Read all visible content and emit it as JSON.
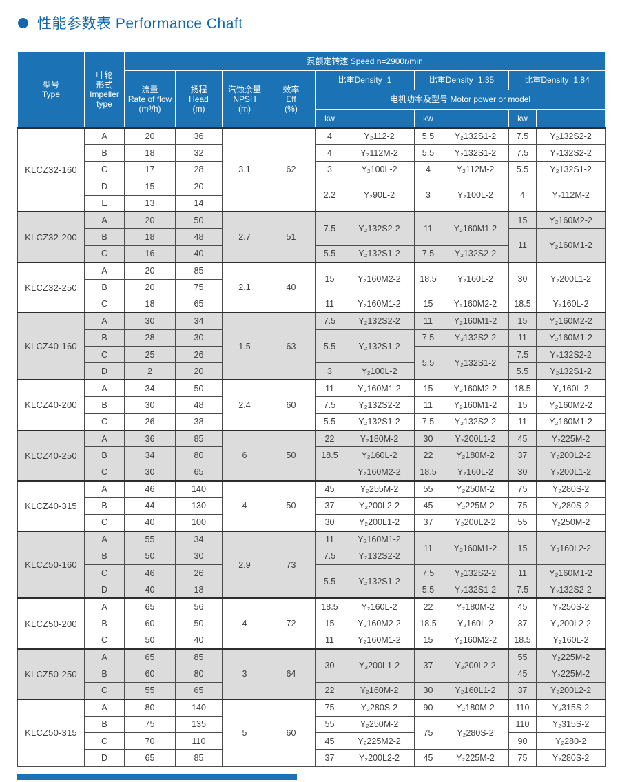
{
  "page": {
    "title": "性能参数表 Performance Chaft"
  },
  "colors": {
    "accent_blue": "#1268ae",
    "header_blue": "#1b73b5",
    "shaded_row_gray": "#dcdcdc",
    "border_dark": "#2d2d2d"
  },
  "header": {
    "speed": "泵额定转速 Speed n=2900r/min",
    "type": "型号\nType",
    "impeller": "叶轮\n形式\nImpeller\ntype",
    "flow": "流量\nRate of flow\n(m³/h)",
    "head": "扬程\nHead\n(m)",
    "npsh": "汽蚀余量\nNPSH\n(m)",
    "eff": "效率\nEff\n(%)",
    "density1": "比重Density=1",
    "density135": "比重Density=1.35",
    "density184": "比重Density=1.84",
    "motor": "电机功率及型号 Motor power or model",
    "kw": "kw"
  },
  "table": {
    "groups": [
      {
        "model": "KLCZ32-160",
        "shaded": false,
        "npsh": "3.1",
        "eff": "62",
        "rows": [
          {
            "impeller": "A",
            "flow": "20",
            "head": "36"
          },
          {
            "impeller": "B",
            "flow": "18",
            "head": "32"
          },
          {
            "impeller": "C",
            "flow": "17",
            "head": "28"
          },
          {
            "impeller": "D",
            "flow": "15",
            "head": "20"
          },
          {
            "impeller": "E",
            "flow": "13",
            "head": "14"
          }
        ],
        "motor": {
          "d1": [
            {
              "span": 1,
              "kw": "4",
              "model": "Y₂112-2"
            },
            {
              "span": 1,
              "kw": "4",
              "model": "Y₂112M-2"
            },
            {
              "span": 1,
              "kw": "3",
              "model": "Y₂100L-2"
            },
            {
              "span": 2,
              "kw": "2.2",
              "model": "Y₂90L-2"
            }
          ],
          "d135": [
            {
              "span": 1,
              "kw": "5.5",
              "model": "Y₂132S1-2"
            },
            {
              "span": 1,
              "kw": "5.5",
              "model": "Y₂132S1-2"
            },
            {
              "span": 1,
              "kw": "4",
              "model": "Y₂112M-2"
            },
            {
              "span": 2,
              "kw": "3",
              "model": "Y₂100L-2"
            }
          ],
          "d184": [
            {
              "span": 1,
              "kw": "7.5",
              "model": "Y₂132S2-2"
            },
            {
              "span": 1,
              "kw": "7.5",
              "model": "Y₂132S2-2"
            },
            {
              "span": 1,
              "kw": "5.5",
              "model": "Y₂132S1-2"
            },
            {
              "span": 2,
              "kw": "4",
              "model": "Y₂112M-2"
            }
          ]
        }
      },
      {
        "model": "KLCZ32-200",
        "shaded": true,
        "npsh": "2.7",
        "eff": "51",
        "rows": [
          {
            "impeller": "A",
            "flow": "20",
            "head": "50"
          },
          {
            "impeller": "B",
            "flow": "18",
            "head": "48"
          },
          {
            "impeller": "C",
            "flow": "16",
            "head": "40"
          }
        ],
        "motor": {
          "d1": [
            {
              "span": 2,
              "kw": "7.5",
              "model": "Y₂132S2-2"
            },
            {
              "span": 1,
              "kw": "5.5",
              "model": "Y₂132S1-2"
            }
          ],
          "d135": [
            {
              "span": 2,
              "kw": "11",
              "model": "Y₂160M1-2"
            },
            {
              "span": 1,
              "kw": "7.5",
              "model": "Y₂132S2-2"
            }
          ],
          "d184": [
            {
              "span": 1,
              "kw": "15",
              "model": "Y₂160M2-2"
            },
            {
              "span": 2,
              "kw": "11",
              "model": "Y₂160M1-2"
            }
          ]
        }
      },
      {
        "model": "KLCZ32-250",
        "shaded": false,
        "npsh": "2.1",
        "eff": "40",
        "rows": [
          {
            "impeller": "A",
            "flow": "20",
            "head": "85"
          },
          {
            "impeller": "B",
            "flow": "20",
            "head": "75"
          },
          {
            "impeller": "C",
            "flow": "18",
            "head": "65"
          }
        ],
        "motor": {
          "d1": [
            {
              "span": 2,
              "kw": "15",
              "model": "Y₂160M2-2"
            },
            {
              "span": 1,
              "kw": "11",
              "model": "Y₂160M1-2"
            }
          ],
          "d135": [
            {
              "span": 2,
              "kw": "18.5",
              "model": "Y₂160L-2"
            },
            {
              "span": 1,
              "kw": "15",
              "model": "Y₂160M2-2"
            }
          ],
          "d184": [
            {
              "span": 2,
              "kw": "30",
              "model": "Y₂200L1-2"
            },
            {
              "span": 1,
              "kw": "18.5",
              "model": "Y₂160L-2"
            }
          ]
        }
      },
      {
        "model": "KLCZ40-160",
        "shaded": true,
        "npsh": "1.5",
        "eff": "63",
        "rows": [
          {
            "impeller": "A",
            "flow": "30",
            "head": "34"
          },
          {
            "impeller": "B",
            "flow": "28",
            "head": "30"
          },
          {
            "impeller": "C",
            "flow": "25",
            "head": "26"
          },
          {
            "impeller": "D",
            "flow": "2",
            "head": "20"
          }
        ],
        "motor": {
          "d1": [
            {
              "span": 1,
              "kw": "7.5",
              "model": "Y₂132S2-2"
            },
            {
              "span": 2,
              "kw": "5.5",
              "model": "Y₂132S1-2"
            },
            {
              "span": 1,
              "kw": "3",
              "model": "Y₂100L-2"
            }
          ],
          "d135": [
            {
              "span": 1,
              "kw": "11",
              "model": "Y₂160M1-2"
            },
            {
              "span": 1,
              "kw": "7.5",
              "model": "Y₂132S2-2"
            },
            {
              "span": 2,
              "kw": "5.5",
              "model": "Y₂132S1-2"
            }
          ],
          "d184": [
            {
              "span": 1,
              "kw": "15",
              "model": "Y₂160M2-2"
            },
            {
              "span": 1,
              "kw": "11",
              "model": "Y₂160M1-2"
            },
            {
              "span": 1,
              "kw": "7.5",
              "model": "Y₂132S2-2"
            },
            {
              "span": 1,
              "kw": "5.5",
              "model": "Y₂132S1-2"
            }
          ]
        }
      },
      {
        "model": "KLCZ40-200",
        "shaded": false,
        "npsh": "2.4",
        "eff": "60",
        "rows": [
          {
            "impeller": "A",
            "flow": "34",
            "head": "50"
          },
          {
            "impeller": "B",
            "flow": "30",
            "head": "48"
          },
          {
            "impeller": "C",
            "flow": "26",
            "head": "38"
          }
        ],
        "motor": {
          "d1": [
            {
              "span": 1,
              "kw": "11",
              "model": "Y₂160M1-2"
            },
            {
              "span": 1,
              "kw": "7.5",
              "model": "Y₂132S2-2"
            },
            {
              "span": 1,
              "kw": "5.5",
              "model": "Y₂132S1-2"
            }
          ],
          "d135": [
            {
              "span": 1,
              "kw": "15",
              "model": "Y₂160M2-2"
            },
            {
              "span": 1,
              "kw": "11",
              "model": "Y₂160M1-2"
            },
            {
              "span": 1,
              "kw": "7.5",
              "model": "Y₂132S2-2"
            }
          ],
          "d184": [
            {
              "span": 1,
              "kw": "18.5",
              "model": "Y₂160L-2"
            },
            {
              "span": 1,
              "kw": "15",
              "model": "Y₂160M2-2"
            },
            {
              "span": 1,
              "kw": "11",
              "model": "Y₂160M1-2"
            }
          ]
        }
      },
      {
        "model": "KLCZ40-250",
        "shaded": true,
        "npsh": "6",
        "eff": "50",
        "rows": [
          {
            "impeller": "A",
            "flow": "36",
            "head": "85"
          },
          {
            "impeller": "B",
            "flow": "34",
            "head": "80"
          },
          {
            "impeller": "C",
            "flow": "30",
            "head": "65"
          }
        ],
        "motor": {
          "d1": [
            {
              "span": 1,
              "kw": "22",
              "model": "Y₂180M-2"
            },
            {
              "span": 1,
              "kw": "18.5",
              "model": "Y₂160L-2"
            },
            {
              "span": 1,
              "kw": "",
              "model": "Y₂160M2-2"
            }
          ],
          "d135": [
            {
              "span": 1,
              "kw": "30",
              "model": "Y₂200L1-2"
            },
            {
              "span": 1,
              "kw": "22",
              "model": "Y₂180M-2"
            },
            {
              "span": 1,
              "kw": "18.5",
              "model": "Y₂160L-2"
            }
          ],
          "d184": [
            {
              "span": 1,
              "kw": "45",
              "model": "Y₂225M-2"
            },
            {
              "span": 1,
              "kw": "37",
              "model": "Y₂200L2-2"
            },
            {
              "span": 1,
              "kw": "30",
              "model": "Y₂200L1-2"
            }
          ]
        }
      },
      {
        "model": "KLCZ40-315",
        "shaded": false,
        "npsh": "4",
        "eff": "50",
        "rows": [
          {
            "impeller": "A",
            "flow": "46",
            "head": "140"
          },
          {
            "impeller": "B",
            "flow": "44",
            "head": "130"
          },
          {
            "impeller": "C",
            "flow": "40",
            "head": "100"
          }
        ],
        "motor": {
          "d1": [
            {
              "span": 1,
              "kw": "45",
              "model": "Y₂255M-2"
            },
            {
              "span": 1,
              "kw": "37",
              "model": "Y₂200L2-2"
            },
            {
              "span": 1,
              "kw": "30",
              "model": "Y₂200L1-2"
            }
          ],
          "d135": [
            {
              "span": 1,
              "kw": "55",
              "model": "Y₂250M-2"
            },
            {
              "span": 1,
              "kw": "45",
              "model": "Y₂225M-2"
            },
            {
              "span": 1,
              "kw": "37",
              "model": "Y₂200L2-2"
            }
          ],
          "d184": [
            {
              "span": 1,
              "kw": "75",
              "model": "Y₂280S-2"
            },
            {
              "span": 1,
              "kw": "75",
              "model": "Y₂280S-2"
            },
            {
              "span": 1,
              "kw": "55",
              "model": "Y₂250M-2"
            }
          ]
        }
      },
      {
        "model": "KLCZ50-160",
        "shaded": true,
        "npsh": "2.9",
        "eff": "73",
        "rows": [
          {
            "impeller": "A",
            "flow": "55",
            "head": "34"
          },
          {
            "impeller": "B",
            "flow": "50",
            "head": "30"
          },
          {
            "impeller": "C",
            "flow": "46",
            "head": "26"
          },
          {
            "impeller": "D",
            "flow": "40",
            "head": "18"
          }
        ],
        "motor": {
          "d1": [
            {
              "span": 1,
              "kw": "11",
              "model": "Y₂160M1-2"
            },
            {
              "span": 1,
              "kw": "7.5",
              "model": "Y₂132S2-2"
            },
            {
              "span": 2,
              "kw": "5.5",
              "model": "Y₂132S1-2"
            }
          ],
          "d135": [
            {
              "span": 2,
              "kw": "11",
              "model": "Y₂160M1-2"
            },
            {
              "span": 1,
              "kw": "7.5",
              "model": "Y₂132S2-2"
            },
            {
              "span": 1,
              "kw": "5.5",
              "model": "Y₂132S1-2"
            }
          ],
          "d184": [
            {
              "span": 2,
              "kw": "15",
              "model": "Y₂160L2-2"
            },
            {
              "span": 1,
              "kw": "11",
              "model": "Y₂160M1-2"
            },
            {
              "span": 1,
              "kw": "7.5",
              "model": "Y₂132S2-2"
            }
          ]
        }
      },
      {
        "model": "KLCZ50-200",
        "shaded": false,
        "npsh": "4",
        "eff": "72",
        "rows": [
          {
            "impeller": "A",
            "flow": "65",
            "head": "56"
          },
          {
            "impeller": "B",
            "flow": "60",
            "head": "50"
          },
          {
            "impeller": "C",
            "flow": "50",
            "head": "40"
          }
        ],
        "motor": {
          "d1": [
            {
              "span": 1,
              "kw": "18.5",
              "model": "Y₂160L-2"
            },
            {
              "span": 1,
              "kw": "15",
              "model": "Y₂160M2-2"
            },
            {
              "span": 1,
              "kw": "11",
              "model": "Y₂160M1-2"
            }
          ],
          "d135": [
            {
              "span": 1,
              "kw": "22",
              "model": "Y₂180M-2"
            },
            {
              "span": 1,
              "kw": "18.5",
              "model": "Y₂160L-2"
            },
            {
              "span": 1,
              "kw": "15",
              "model": "Y₂160M2-2"
            }
          ],
          "d184": [
            {
              "span": 1,
              "kw": "45",
              "model": "Y₂250S-2"
            },
            {
              "span": 1,
              "kw": "37",
              "model": "Y₂200L2-2"
            },
            {
              "span": 1,
              "kw": "18.5",
              "model": "Y₂160L-2"
            }
          ]
        }
      },
      {
        "model": "KLCZ50-250",
        "shaded": true,
        "npsh": "3",
        "eff": "64",
        "rows": [
          {
            "impeller": "A",
            "flow": "65",
            "head": "85"
          },
          {
            "impeller": "B",
            "flow": "60",
            "head": "80"
          },
          {
            "impeller": "C",
            "flow": "55",
            "head": "65"
          }
        ],
        "motor": {
          "d1": [
            {
              "span": 2,
              "kw": "30",
              "model": "Y₂200L1-2"
            },
            {
              "span": 1,
              "kw": "22",
              "model": "Y₂160M-2"
            }
          ],
          "d135": [
            {
              "span": 2,
              "kw": "37",
              "model": "Y₂200L2-2"
            },
            {
              "span": 1,
              "kw": "30",
              "model": "Y₂160L1-2"
            }
          ],
          "d184": [
            {
              "span": 1,
              "kw": "55",
              "model": "Y₂225M-2"
            },
            {
              "span": 1,
              "kw": "45",
              "model": "Y₂225M-2"
            },
            {
              "span": 1,
              "kw": "37",
              "model": "Y₂200L2-2"
            }
          ]
        }
      },
      {
        "model": "KLCZ50-315",
        "shaded": false,
        "npsh": "5",
        "eff": "60",
        "rows": [
          {
            "impeller": "A",
            "flow": "80",
            "head": "140"
          },
          {
            "impeller": "B",
            "flow": "75",
            "head": "135"
          },
          {
            "impeller": "C",
            "flow": "70",
            "head": "110"
          },
          {
            "impeller": "D",
            "flow": "65",
            "head": "85"
          }
        ],
        "motor": {
          "d1": [
            {
              "span": 1,
              "kw": "75",
              "model": "Y₂280S-2"
            },
            {
              "span": 1,
              "kw": "55",
              "model": "Y₂250M-2"
            },
            {
              "span": 1,
              "kw": "45",
              "model": "Y₂225M2-2"
            },
            {
              "span": 1,
              "kw": "37",
              "model": "Y₂200L2-2"
            }
          ],
          "d135": [
            {
              "span": 1,
              "kw": "90",
              "model": "Y₂180M-2"
            },
            {
              "span": 2,
              "kw": "75",
              "model": "Y₂280S-2"
            },
            {
              "span": 1,
              "kw": "45",
              "model": "Y₂225M-2"
            }
          ],
          "d184": [
            {
              "span": 1,
              "kw": "110",
              "model": "Y₂315S-2"
            },
            {
              "span": 1,
              "kw": "110",
              "model": "Y₂315S-2"
            },
            {
              "span": 1,
              "kw": "90",
              "model": "Y₂280-2"
            },
            {
              "span": 1,
              "kw": "75",
              "model": "Y₂280S-2"
            }
          ]
        }
      }
    ]
  }
}
